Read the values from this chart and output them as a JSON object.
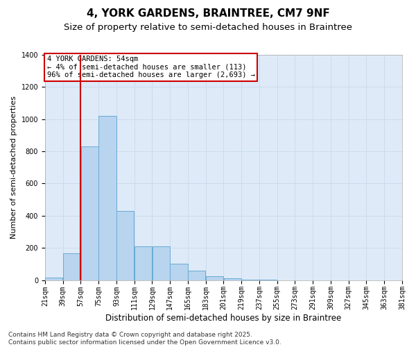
{
  "title": "4, YORK GARDENS, BRAINTREE, CM7 9NF",
  "subtitle": "Size of property relative to semi-detached houses in Braintree",
  "xlabel": "Distribution of semi-detached houses by size in Braintree",
  "ylabel": "Number of semi-detached properties",
  "bar_color": "#b8d4ee",
  "bar_edge_color": "#6aaad4",
  "grid_color": "#c8daea",
  "background_color": "#deeaf8",
  "annotation_text": "4 YORK GARDENS: 54sqm\n← 4% of semi-detached houses are smaller (113)\n96% of semi-detached houses are larger (2,693) →",
  "vline_x": 57,
  "vline_color": "#cc0000",
  "bins": [
    21,
    39,
    57,
    75,
    93,
    111,
    129,
    147,
    165,
    183,
    201,
    219,
    237,
    255,
    273,
    291,
    309,
    327,
    345,
    363,
    381
  ],
  "bin_labels": [
    "21sqm",
    "39sqm",
    "57sqm",
    "75sqm",
    "93sqm",
    "111sqm",
    "129sqm",
    "147sqm",
    "165sqm",
    "183sqm",
    "201sqm",
    "219sqm",
    "237sqm",
    "255sqm",
    "273sqm",
    "291sqm",
    "309sqm",
    "327sqm",
    "345sqm",
    "363sqm",
    "381sqm"
  ],
  "values": [
    15,
    165,
    830,
    1020,
    430,
    210,
    210,
    100,
    60,
    25,
    10,
    2,
    1,
    0,
    0,
    0,
    0,
    0,
    0,
    0
  ],
  "ylim": [
    0,
    1400
  ],
  "yticks": [
    0,
    200,
    400,
    600,
    800,
    1000,
    1200,
    1400
  ],
  "footer_text": "Contains HM Land Registry data © Crown copyright and database right 2025.\nContains public sector information licensed under the Open Government Licence v3.0.",
  "title_fontsize": 11,
  "subtitle_fontsize": 9.5,
  "xlabel_fontsize": 8.5,
  "ylabel_fontsize": 8,
  "tick_fontsize": 7,
  "annotation_fontsize": 7.5,
  "footer_fontsize": 6.5
}
